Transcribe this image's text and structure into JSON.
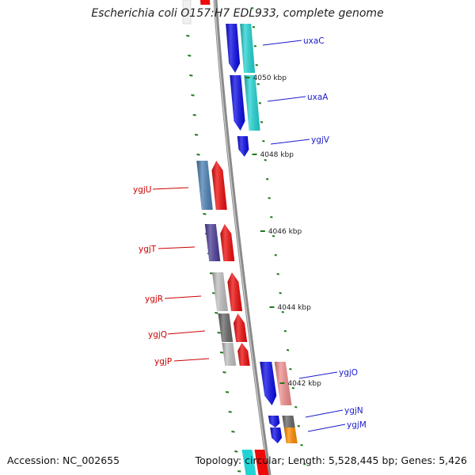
{
  "title": "Escherichia coli O157:H7 EDL933, complete genome",
  "footer": {
    "accession": "Accession: NC_002655",
    "stats": "Topology: circular; Length: 5,528,445 bp; Genes: 5,426"
  },
  "colors": {
    "forward_label": "#1a1acc",
    "reverse_label": "#cc0000",
    "backbone": "#8a8a8a",
    "tick": "#1f7a1f"
  },
  "kbp_labels": [
    "4050 kbp",
    "4048 kbp",
    "4046 kbp",
    "4044 kbp",
    "4042 kbp"
  ],
  "genes": [
    {
      "name": "uxaC",
      "strand": "forward",
      "color": "#0a0ae6",
      "cog_color": "#22d3d3"
    },
    {
      "name": "uxaA",
      "strand": "forward",
      "color": "#0a0ae6",
      "cog_color": "#22d3d3"
    },
    {
      "name": "ygjV",
      "strand": "forward",
      "color": "#0a0ae6",
      "cog_color": null
    },
    {
      "name": "ygjU",
      "strand": "reverse",
      "color": "#ee0a0a",
      "cog_color": "#4a7fb4"
    },
    {
      "name": "ygjT",
      "strand": "reverse",
      "color": "#ee0a0a",
      "cog_color": "#4a3c96"
    },
    {
      "name": "ygjR",
      "strand": "reverse",
      "color": "#ee0a0a",
      "cog_color": "#bfbfbf"
    },
    {
      "name": "ygjQ",
      "strand": "reverse",
      "color": "#ee0a0a",
      "cog_color": "#666666"
    },
    {
      "name": "ygjP",
      "strand": "reverse",
      "color": "#ee0a0a",
      "cog_color": "#bfbfbf"
    },
    {
      "name": "ygjO",
      "strand": "forward",
      "color": "#0a0ae6",
      "cog_color": "#f08c8c"
    },
    {
      "name": "ygjN",
      "strand": "forward",
      "color": "#0a0ae6",
      "cog_color": "#666666"
    },
    {
      "name": "ygjM",
      "strand": "forward",
      "color": "#0a0ae6",
      "cog_color": "#ff8c00"
    }
  ]
}
